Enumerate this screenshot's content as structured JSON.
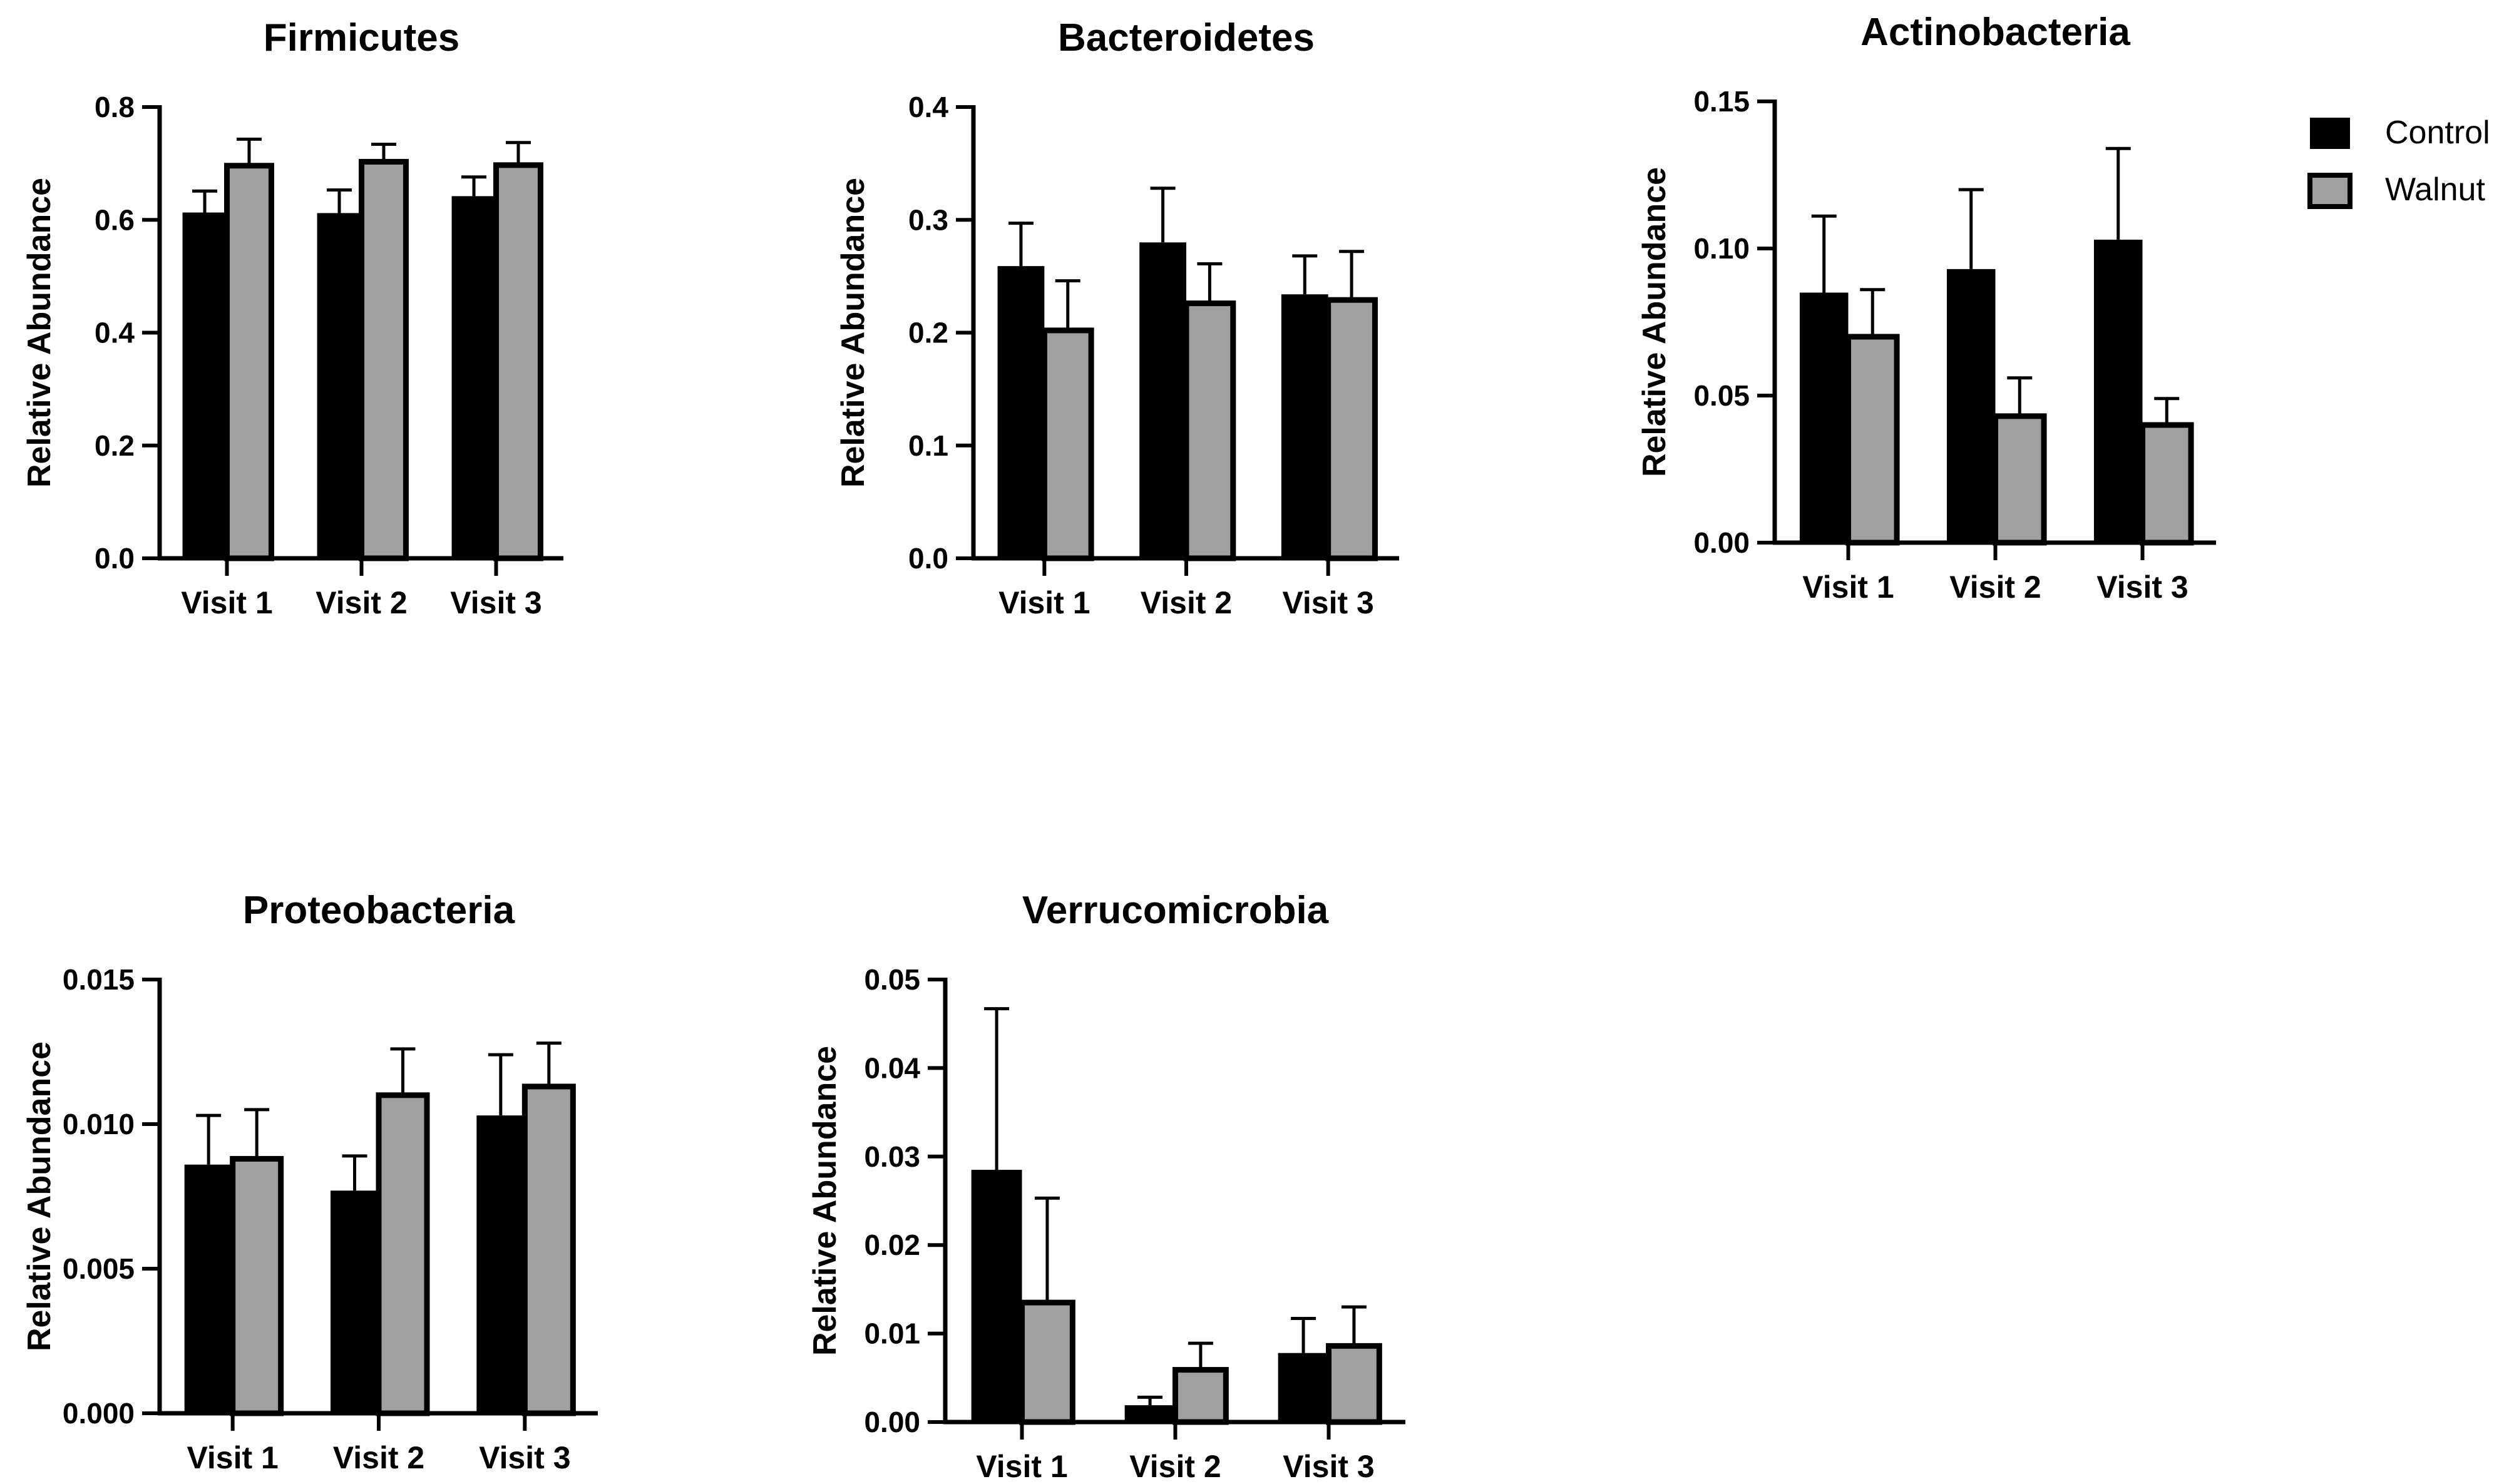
{
  "chart_data": [
    {
      "type": "bar",
      "title": "Firmicutes",
      "ylabel": "Relative Abundance",
      "xlabel": "",
      "categories": [
        "Visit 1",
        "Visit 2",
        "Visit 3"
      ],
      "ylim": [
        0,
        0.8
      ],
      "yticks": [
        "0.0",
        "0.2",
        "0.4",
        "0.6",
        "0.8"
      ],
      "series": [
        {
          "name": "Control",
          "values": [
            0.613,
            0.612,
            0.642
          ],
          "errors": [
            0.038,
            0.041,
            0.034
          ]
        },
        {
          "name": "Walnut",
          "values": [
            0.696,
            0.703,
            0.697
          ],
          "errors": [
            0.047,
            0.031,
            0.04
          ]
        }
      ]
    },
    {
      "type": "bar",
      "title": "Bacteroidetes",
      "ylabel": "Relative Abundance",
      "xlabel": "",
      "categories": [
        "Visit 1",
        "Visit 2",
        "Visit 3"
      ],
      "ylim": [
        0,
        0.4
      ],
      "yticks": [
        "0.0",
        "0.1",
        "0.2",
        "0.3",
        "0.4"
      ],
      "series": [
        {
          "name": "Control",
          "values": [
            0.259,
            0.28,
            0.234
          ],
          "errors": [
            0.038,
            0.048,
            0.034
          ]
        },
        {
          "name": "Walnut",
          "values": [
            0.202,
            0.226,
            0.229
          ],
          "errors": [
            0.044,
            0.035,
            0.043
          ]
        }
      ]
    },
    {
      "type": "bar",
      "title": "Actinobacteria",
      "ylabel": "Relative Abundance",
      "xlabel": "",
      "categories": [
        "Visit 1",
        "Visit 2",
        "Visit 3"
      ],
      "ylim": [
        0,
        0.15
      ],
      "yticks": [
        "0.00",
        "0.05",
        "0.10",
        "0.15"
      ],
      "series": [
        {
          "name": "Control",
          "values": [
            0.085,
            0.093,
            0.103
          ],
          "errors": [
            0.026,
            0.027,
            0.031
          ]
        },
        {
          "name": "Walnut",
          "values": [
            0.07,
            0.043,
            0.04
          ],
          "errors": [
            0.016,
            0.013,
            0.009
          ]
        }
      ]
    },
    {
      "type": "bar",
      "title": "Proteobacteria",
      "ylabel": "Relative Abundance",
      "xlabel": "",
      "categories": [
        "Visit 1",
        "Visit 2",
        "Visit 3"
      ],
      "ylim": [
        0,
        0.015
      ],
      "yticks": [
        "0.000",
        "0.005",
        "0.010",
        "0.015"
      ],
      "series": [
        {
          "name": "Control",
          "values": [
            0.0086,
            0.0077,
            0.0103
          ],
          "errors": [
            0.0017,
            0.0012,
            0.0021
          ]
        },
        {
          "name": "Walnut",
          "values": [
            0.0088,
            0.011,
            0.0113
          ],
          "errors": [
            0.0017,
            0.0016,
            0.0015
          ]
        }
      ]
    },
    {
      "type": "bar",
      "title": "Verrucomicrobia",
      "ylabel": "Relative Abundance",
      "xlabel": "",
      "categories": [
        "Visit 1",
        "Visit 2",
        "Visit 3"
      ],
      "ylim": [
        0,
        0.05
      ],
      "yticks": [
        "0.00",
        "0.01",
        "0.02",
        "0.03",
        "0.04",
        "0.05"
      ],
      "series": [
        {
          "name": "Control",
          "values": [
            0.0285,
            0.0019,
            0.0078
          ],
          "errors": [
            0.0182,
            0.0009,
            0.0039
          ]
        },
        {
          "name": "Walnut",
          "values": [
            0.0135,
            0.0059,
            0.0086
          ],
          "errors": [
            0.0118,
            0.003,
            0.0044
          ]
        }
      ]
    }
  ],
  "legend": {
    "placement": "top-right",
    "items": [
      {
        "name": "Control",
        "color": "#000000"
      },
      {
        "name": "Walnut",
        "color": "#a0a0a0"
      }
    ]
  },
  "colors": {
    "control": "#000000",
    "walnut": "#a0a0a0",
    "axis": "#000000"
  }
}
